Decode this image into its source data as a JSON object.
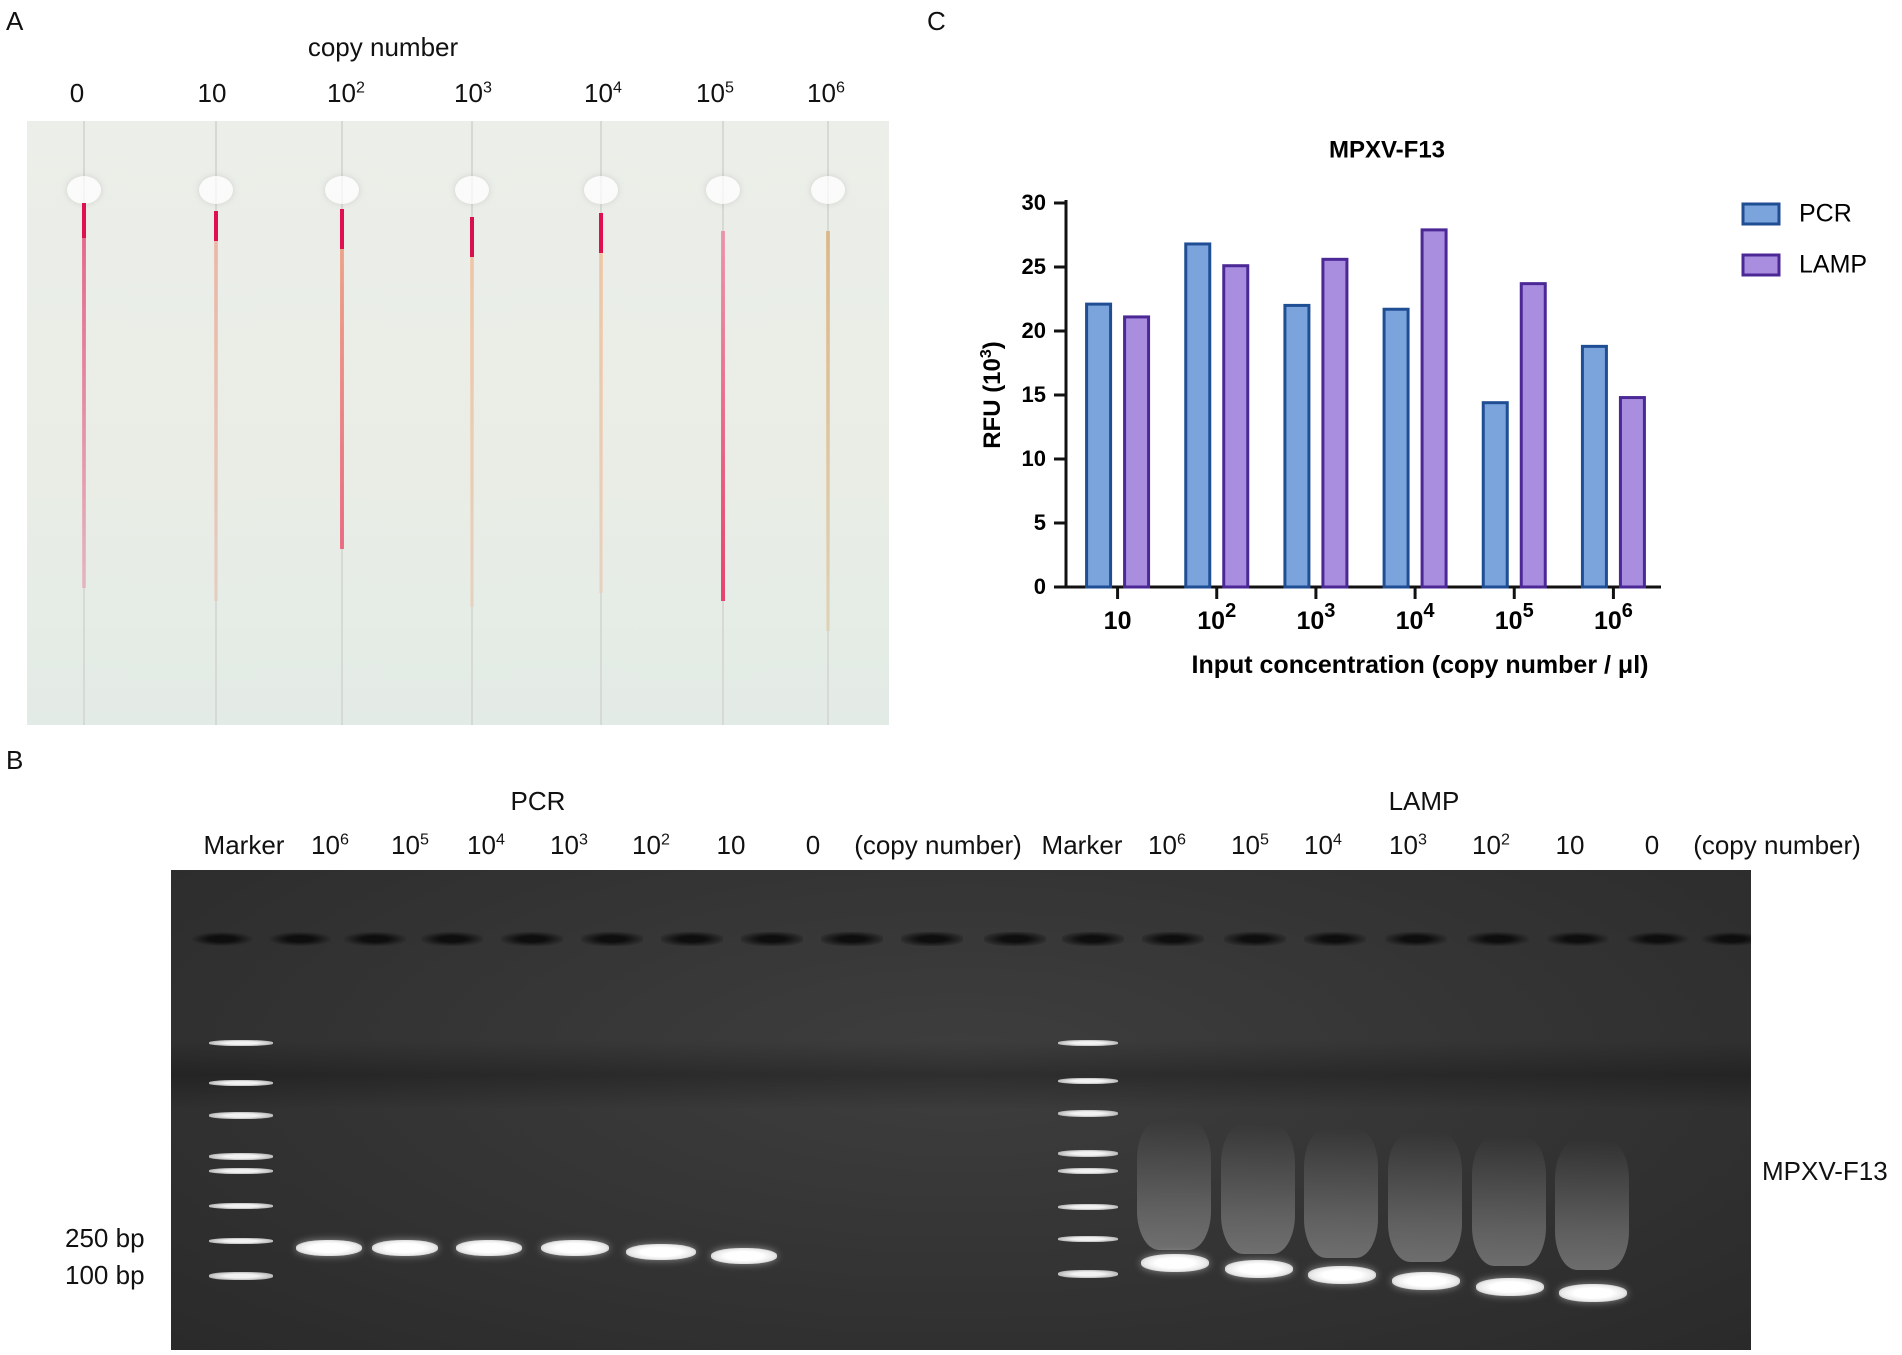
{
  "panel_a": {
    "letter": "A",
    "header": "copy number",
    "lanes": [
      {
        "base": "0",
        "exp": ""
      },
      {
        "base": "10",
        "exp": ""
      },
      {
        "base": "10",
        "exp": "2"
      },
      {
        "base": "10",
        "exp": "3"
      },
      {
        "base": "10",
        "exp": "4"
      },
      {
        "base": "10",
        "exp": "5"
      },
      {
        "base": "10",
        "exp": "6"
      }
    ]
  },
  "panel_b": {
    "letter": "B",
    "pcr_title": "PCR",
    "lamp_title": "LAMP",
    "marker_label": "Marker",
    "copy_number_label": "(copy number)",
    "pcr_lanes": [
      {
        "base": "10",
        "exp": "6"
      },
      {
        "base": "10",
        "exp": "5"
      },
      {
        "base": "10",
        "exp": "4"
      },
      {
        "base": "10",
        "exp": "3"
      },
      {
        "base": "10",
        "exp": "2"
      },
      {
        "base": "10",
        "exp": ""
      },
      {
        "base": "0",
        "exp": ""
      }
    ],
    "lamp_lanes": [
      {
        "base": "10",
        "exp": "6"
      },
      {
        "base": "10",
        "exp": "5"
      },
      {
        "base": "10",
        "exp": "4"
      },
      {
        "base": "10",
        "exp": "3"
      },
      {
        "base": "10",
        "exp": "2"
      },
      {
        "base": "10",
        "exp": ""
      },
      {
        "base": "0",
        "exp": ""
      }
    ],
    "size_250": "250 bp",
    "size_100": "100 bp",
    "target_label": "MPXV-F13"
  },
  "panel_c": {
    "letter": "C"
  },
  "chart_data": {
    "type": "bar",
    "title": "MPXV-F13",
    "xlabel": "Input concentration (copy number / μl)",
    "ylabel": "RFU (10",
    "ylabel_exp": "3",
    "ylabel_close": ")",
    "ylim": [
      0,
      30
    ],
    "yticks": [
      "0",
      "5",
      "10",
      "15",
      "20",
      "25",
      "30"
    ],
    "categories": [
      {
        "base": "10",
        "exp": ""
      },
      {
        "base": "10",
        "exp": "2"
      },
      {
        "base": "10",
        "exp": "3"
      },
      {
        "base": "10",
        "exp": "4"
      },
      {
        "base": "10",
        "exp": "5"
      },
      {
        "base": "10",
        "exp": "6"
      }
    ],
    "series": [
      {
        "name": "PCR",
        "values": [
          22.1,
          26.8,
          22.0,
          21.7,
          14.4,
          18.8
        ],
        "fill": "#7ba3dc",
        "stroke": "#1f4e94"
      },
      {
        "name": "LAMP",
        "values": [
          21.1,
          25.1,
          25.6,
          27.9,
          23.7,
          14.8
        ],
        "fill": "#a98ee0",
        "stroke": "#4b2896"
      }
    ],
    "legend_position": "top-right",
    "grid": false
  }
}
